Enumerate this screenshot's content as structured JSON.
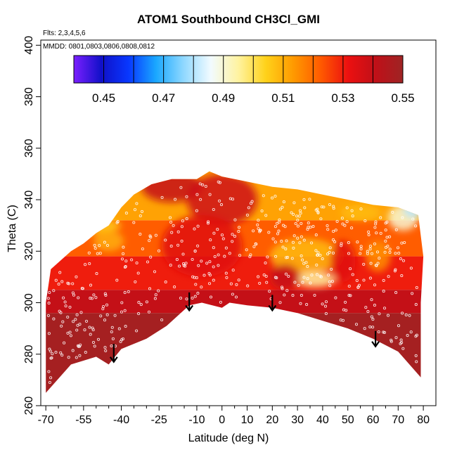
{
  "chart_data": {
    "type": "heatmap",
    "title": "ATOM1 Southbound CH3Cl_GMI",
    "subtitle_flights": "Flts: 2,3,4,5,6",
    "subtitle_dates": "MMDD: 0801,0803,0806,0808,0812",
    "xlabel": "Latitude (deg N)",
    "ylabel": "Theta (C)",
    "xlim": [
      -72,
      85
    ],
    "ylim": [
      260,
      402
    ],
    "x_ticks": [
      -70,
      -55,
      -40,
      -25,
      -10,
      0,
      10,
      20,
      30,
      40,
      50,
      60,
      70,
      80
    ],
    "x_tick_labels": [
      "-70",
      "-55",
      "-40",
      "-25",
      "-10",
      "0",
      "10",
      "20",
      "30",
      "40",
      "50",
      "60",
      "70",
      "80"
    ],
    "x_minor_ticks": [
      -65,
      -60,
      -50,
      -45,
      -35,
      -30,
      -20,
      -15,
      -5,
      5,
      15,
      25,
      35,
      45,
      55,
      65,
      75
    ],
    "y_ticks": [
      260,
      280,
      300,
      320,
      340,
      360,
      380,
      400
    ],
    "y_tick_labels": [
      "260",
      "280",
      "300",
      "320",
      "340",
      "360",
      "380",
      "400"
    ],
    "colorbar": {
      "range": [
        0.44,
        0.55
      ],
      "tick_values": [
        0.45,
        0.47,
        0.49,
        0.51,
        0.53,
        0.55
      ],
      "tick_labels": [
        "0.45",
        "0.47",
        "0.49",
        "0.51",
        "0.53",
        "0.55"
      ],
      "colors": [
        "#7b1fff",
        "#1010c8",
        "#0838ff",
        "#1aa8ff",
        "#8fd8ff",
        "#f2fbff",
        "#fff3a0",
        "#ffd21a",
        "#ff9a00",
        "#ff5a00",
        "#ec1010",
        "#c01018",
        "#9e2424"
      ]
    },
    "top_boundary": [
      [
        -70,
        300
      ],
      [
        -68,
        313
      ],
      [
        -60,
        320
      ],
      [
        -55,
        323
      ],
      [
        -50,
        327
      ],
      [
        -45,
        330
      ],
      [
        -40,
        337
      ],
      [
        -35,
        342
      ],
      [
        -28,
        346
      ],
      [
        -20,
        348
      ],
      [
        -10,
        348
      ],
      [
        -5,
        351
      ],
      [
        0,
        349
      ],
      [
        10,
        347
      ],
      [
        20,
        345
      ],
      [
        30,
        344
      ],
      [
        40,
        342
      ],
      [
        50,
        340
      ],
      [
        60,
        338
      ],
      [
        70,
        337
      ],
      [
        78,
        334
      ],
      [
        80,
        318
      ],
      [
        79,
        300
      ]
    ],
    "bottom_boundary": [
      [
        -70,
        265
      ],
      [
        -60,
        276
      ],
      [
        -50,
        279
      ],
      [
        -45,
        276
      ],
      [
        -40,
        282
      ],
      [
        -30,
        286
      ],
      [
        -22,
        291
      ],
      [
        -13,
        299
      ],
      [
        -8,
        300
      ],
      [
        0,
        298
      ],
      [
        3,
        300
      ],
      [
        10,
        299
      ],
      [
        20,
        298
      ],
      [
        30,
        296
      ],
      [
        40,
        293
      ],
      [
        50,
        290
      ],
      [
        60,
        286
      ],
      [
        70,
        281
      ],
      [
        79,
        271
      ]
    ],
    "color_bands": [
      {
        "theta_min": 260,
        "theta_max": 296,
        "value": 0.548
      },
      {
        "theta_min": 296,
        "theta_max": 305,
        "value": 0.54
      },
      {
        "theta_min": 305,
        "theta_max": 318,
        "value": 0.53
      },
      {
        "theta_min": 318,
        "theta_max": 332,
        "value": 0.522
      },
      {
        "theta_min": 332,
        "theta_max": 355,
        "value": 0.512
      }
    ],
    "patches": [
      {
        "lat": -20,
        "theta": 345,
        "rx": 12,
        "ry": 6,
        "value": 0.54
      },
      {
        "lat": 0,
        "theta": 340,
        "rx": 14,
        "ry": 10,
        "value": 0.538
      },
      {
        "lat": -8,
        "theta": 322,
        "rx": 16,
        "ry": 12,
        "value": 0.534
      },
      {
        "lat": 33,
        "theta": 318,
        "rx": 14,
        "ry": 7,
        "value": 0.508
      },
      {
        "lat": 37,
        "theta": 309,
        "rx": 8,
        "ry": 3,
        "value": 0.495
      },
      {
        "lat": 72,
        "theta": 333,
        "rx": 6,
        "ry": 5,
        "value": 0.49
      },
      {
        "lat": 76,
        "theta": 336,
        "rx": 4,
        "ry": 3,
        "value": 0.48
      },
      {
        "lat": -52,
        "theta": 330,
        "rx": 12,
        "ry": 3,
        "value": 0.505
      },
      {
        "lat": -45,
        "theta": 324,
        "rx": 6,
        "ry": 4,
        "value": 0.51
      },
      {
        "lat": 55,
        "theta": 335,
        "rx": 8,
        "ry": 3,
        "value": 0.508
      },
      {
        "lat": 25,
        "theta": 310,
        "rx": 6,
        "ry": 5,
        "value": 0.54
      },
      {
        "lat": 48,
        "theta": 316,
        "rx": 5,
        "ry": 8,
        "value": 0.534
      },
      {
        "lat": 62,
        "theta": 318,
        "rx": 5,
        "ry": 6,
        "value": 0.515
      }
    ],
    "tropopause_arrows": [
      {
        "lat": -43,
        "theta_top": 284,
        "theta_tip": 277
      },
      {
        "lat": -13,
        "theta_top": 304,
        "theta_tip": 297
      },
      {
        "lat": 20,
        "theta_top": 303,
        "theta_tip": 297
      },
      {
        "lat": 61,
        "theta_top": 289,
        "theta_tip": 283
      }
    ]
  }
}
